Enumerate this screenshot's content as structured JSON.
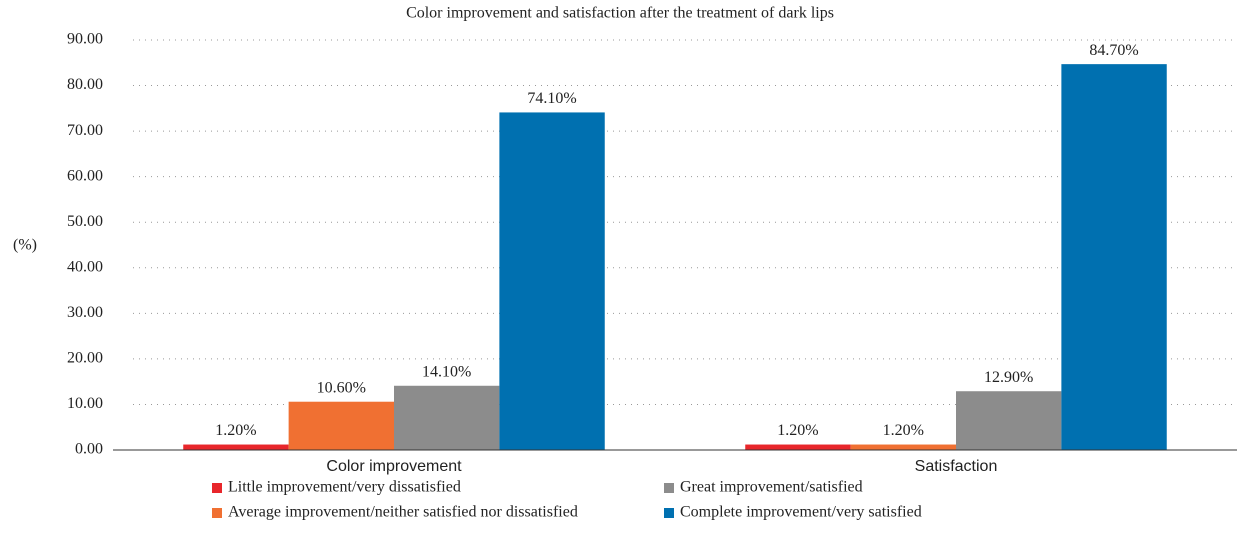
{
  "chart_data": {
    "type": "bar",
    "title": "Color improvement and satisfaction after the treatment of dark lips",
    "y_label": "(%)",
    "categories": [
      "Color improvement",
      "Satisfaction"
    ],
    "series": [
      {
        "name": "Little improvement/very dissatisfied",
        "color": "#e8262b",
        "values": [
          1.2,
          1.2
        ],
        "value_labels": [
          "1.20%",
          "1.20%"
        ]
      },
      {
        "name": "Average improvement/neither satisfied nor dissatisfied",
        "color": "#f07032",
        "values": [
          10.6,
          1.2
        ],
        "value_labels": [
          "10.60%",
          "1.20%"
        ]
      },
      {
        "name": "Great improvement/satisfied",
        "color": "#8c8c8c",
        "values": [
          14.1,
          12.9
        ],
        "value_labels": [
          "14.10%",
          "12.90%"
        ]
      },
      {
        "name": "Complete improvement/very satisfied",
        "color": "#0070b0",
        "values": [
          74.1,
          84.7
        ],
        "value_labels": [
          "74.10%",
          "84.70%"
        ]
      }
    ],
    "ylim": [
      0,
      90
    ],
    "yticks": [
      {
        "value": 0,
        "label": "0.00"
      },
      {
        "value": 10,
        "label": "10.00"
      },
      {
        "value": 20,
        "label": "20.00"
      },
      {
        "value": 30,
        "label": "30.00"
      },
      {
        "value": 40,
        "label": "40.00"
      },
      {
        "value": 50,
        "label": "50.00"
      },
      {
        "value": 60,
        "label": "60.00"
      },
      {
        "value": 70,
        "label": "70.00"
      },
      {
        "value": 80,
        "label": "80.00"
      },
      {
        "value": 90,
        "label": "90.00"
      }
    ],
    "grid": true,
    "legend": "bottom"
  }
}
